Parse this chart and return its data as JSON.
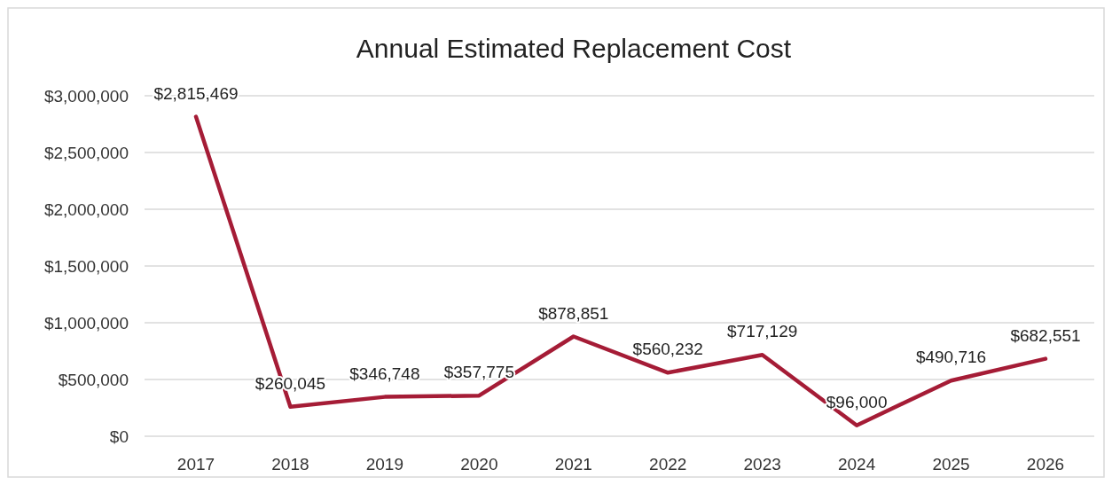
{
  "chart_data": {
    "type": "line",
    "title": "Annual Estimated Replacement Cost",
    "categories": [
      "2017",
      "2018",
      "2019",
      "2020",
      "2021",
      "2022",
      "2023",
      "2024",
      "2025",
      "2026"
    ],
    "series": [
      {
        "color": "#a51c36",
        "values": [
          2815469,
          260045,
          346748,
          357775,
          878851,
          560232,
          717129,
          96000,
          490716,
          682551
        ],
        "value_labels": [
          "$2,815,469",
          "$260,045",
          "$346,748",
          "$357,775",
          "$878,851",
          "$560,232",
          "$717,129",
          "$96,000",
          "$490,716",
          "$682,551"
        ]
      }
    ],
    "ylim": [
      0,
      3000000
    ],
    "yticks": [
      {
        "value": 0,
        "label": "$0"
      },
      {
        "value": 500000,
        "label": "$500,000"
      },
      {
        "value": 1000000,
        "label": "$1,000,000"
      },
      {
        "value": 1500000,
        "label": "$1,500,000"
      },
      {
        "value": 2000000,
        "label": "$2,000,000"
      },
      {
        "value": 2500000,
        "label": "$2,500,000"
      },
      {
        "value": 3000000,
        "label": "$3,000,000"
      }
    ],
    "grid": "y",
    "marker": "none",
    "line_style": "solid"
  }
}
